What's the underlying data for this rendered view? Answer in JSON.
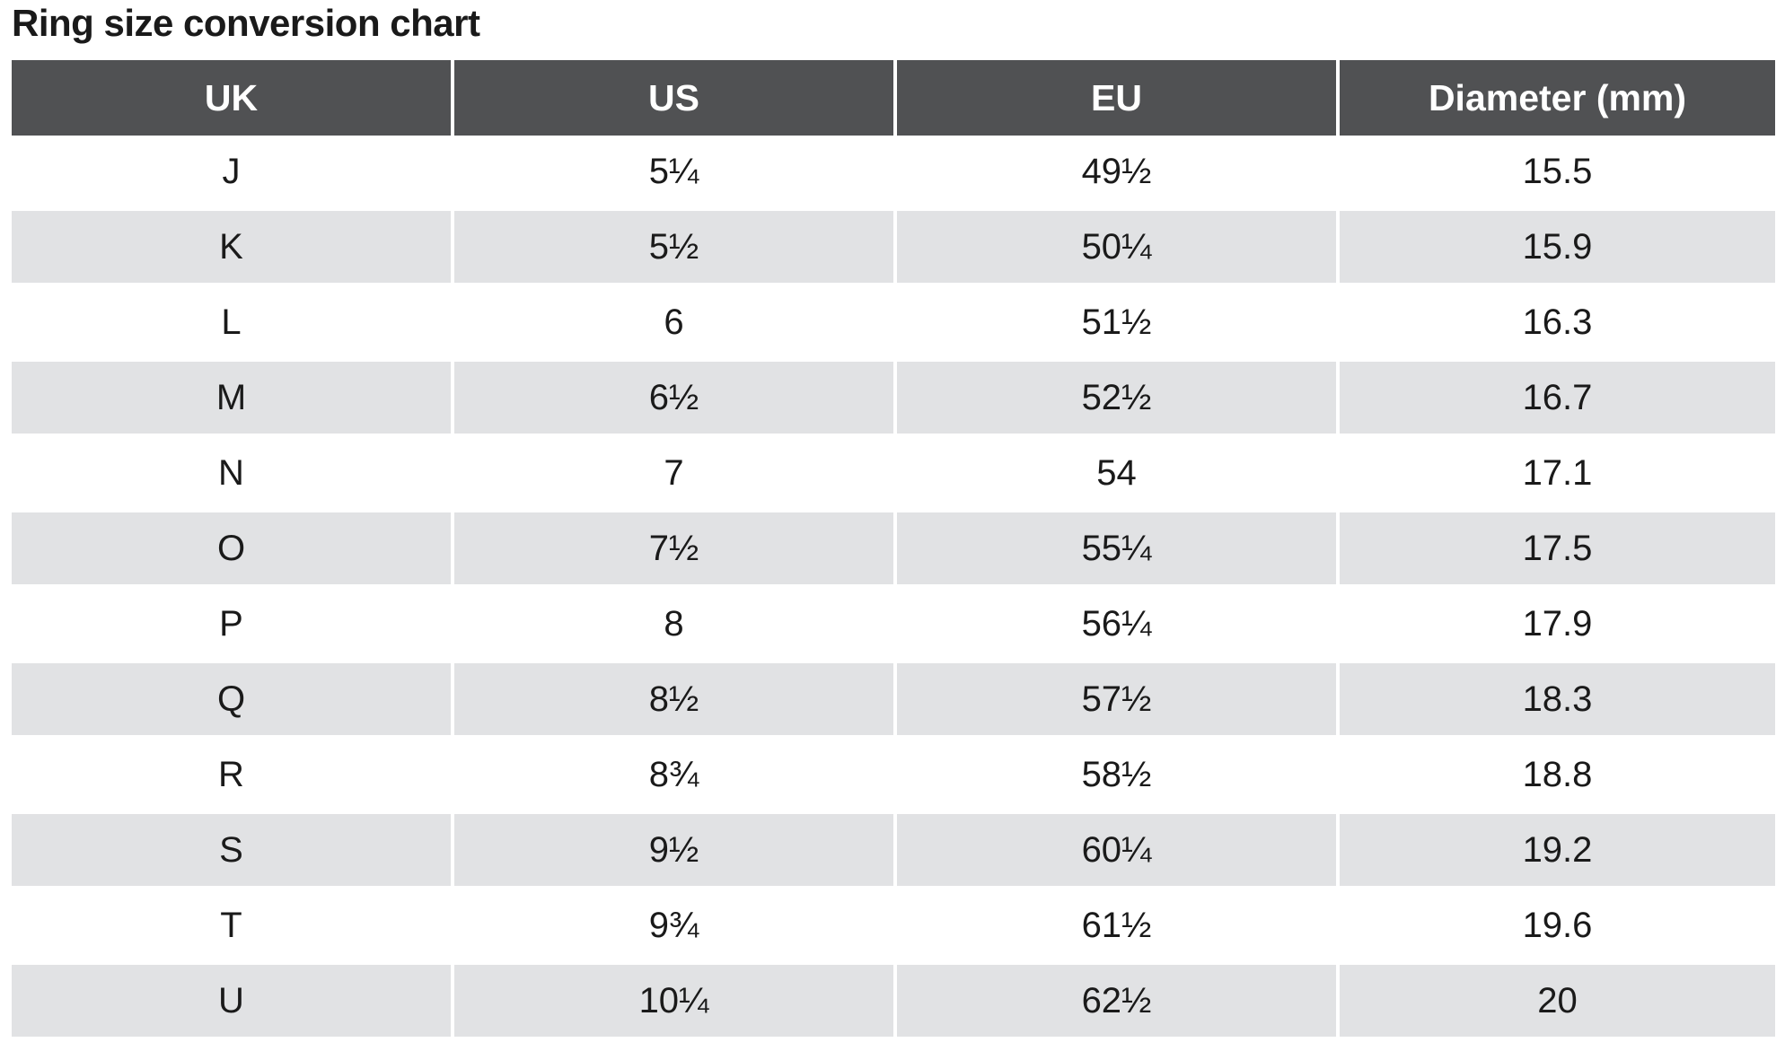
{
  "title": "Ring size conversion chart",
  "headers": [
    "UK",
    "US",
    "EU",
    "Diameter (mm)"
  ],
  "rows": [
    [
      "J",
      "5¼",
      "49½",
      "15.5"
    ],
    [
      "K",
      "5½",
      "50¼",
      "15.9"
    ],
    [
      "L",
      "6",
      "51½",
      "16.3"
    ],
    [
      "M",
      "6½",
      "52½",
      "16.7"
    ],
    [
      "N",
      "7",
      "54",
      "17.1"
    ],
    [
      "O",
      "7½",
      "55¼",
      "17.5"
    ],
    [
      "P",
      "8",
      "56¼",
      "17.9"
    ],
    [
      "Q",
      "8½",
      "57½",
      "18.3"
    ],
    [
      "R",
      "8¾",
      "58½",
      "18.8"
    ],
    [
      "S",
      "9½",
      "60¼",
      "19.2"
    ],
    [
      "T",
      "9¾",
      "61½",
      "19.6"
    ],
    [
      "U",
      "10¼",
      "62½",
      "20"
    ]
  ],
  "colors": {
    "header_bg": "#505153",
    "header_text": "#ffffff",
    "shaded_row": "#e1e2e4",
    "text": "#1a1a1a"
  }
}
